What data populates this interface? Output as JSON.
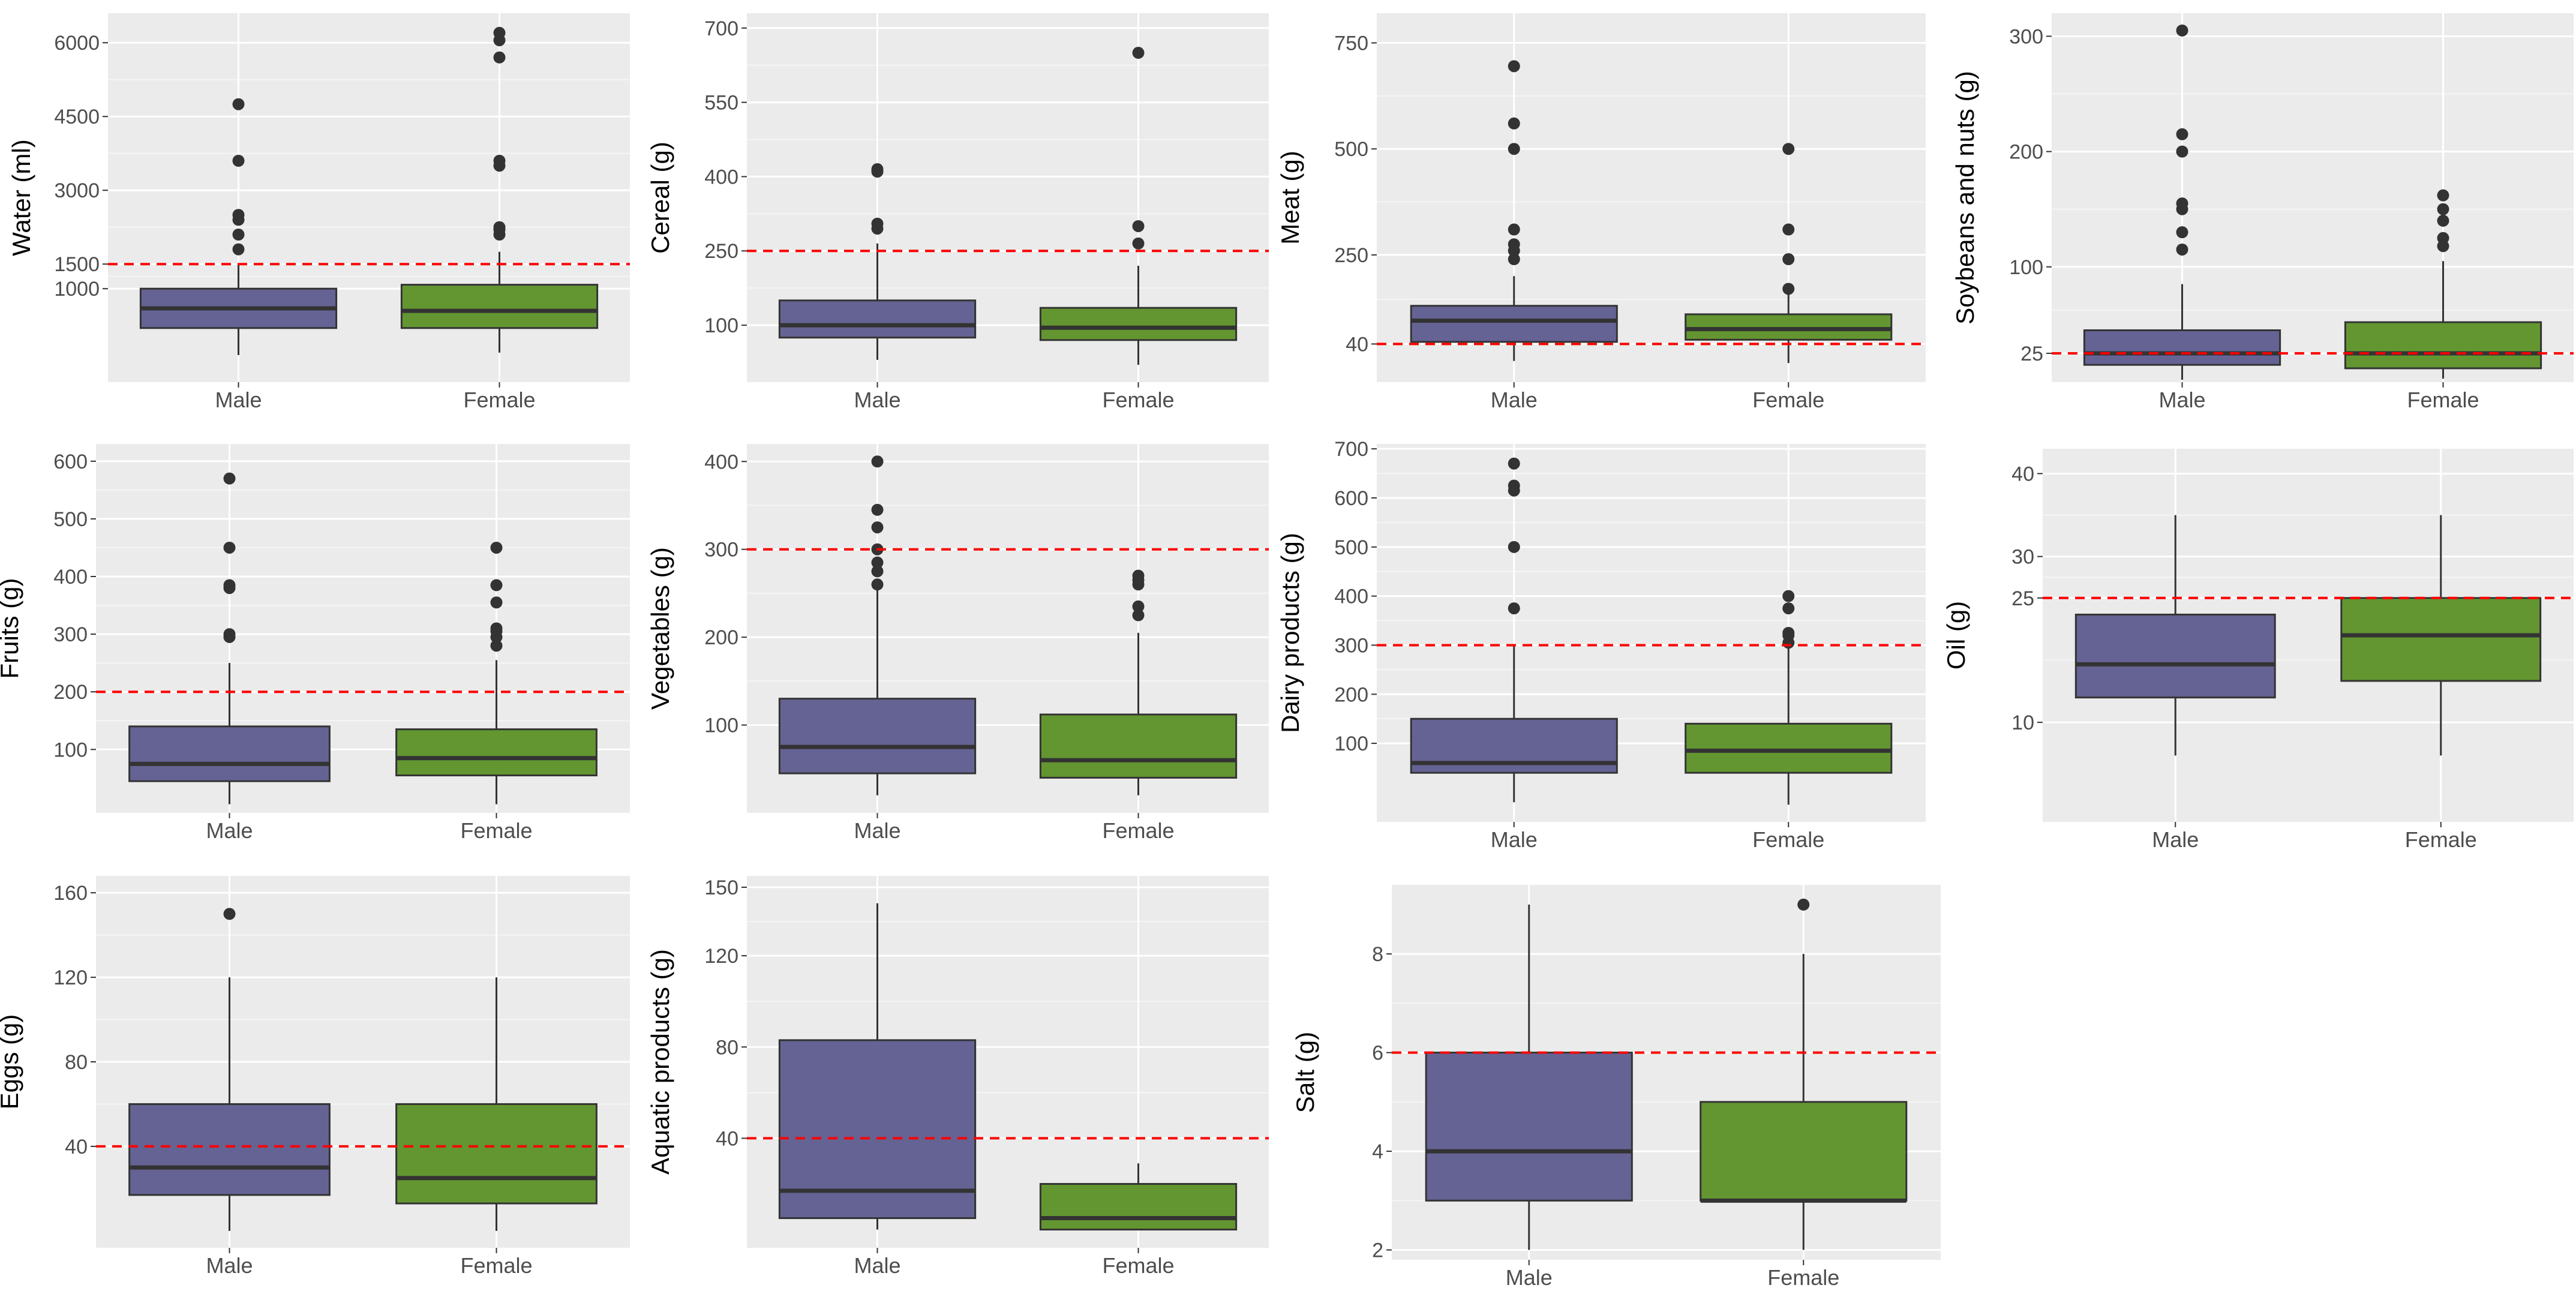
{
  "chart_data": [
    {
      "type": "boxplot",
      "ylabel": "Water (ml)",
      "categories": [
        "Male",
        "Female"
      ],
      "colors": [
        "#656394",
        "#639631"
      ],
      "yticks": [
        1000,
        1500,
        3000,
        4500,
        6000
      ],
      "ylim": [
        -900,
        6600
      ],
      "reference_line": 1500,
      "series": [
        {
          "name": "Male",
          "whisker_low": -350,
          "q1": 200,
          "median": 600,
          "q3": 1000,
          "whisker_high": 1500,
          "outliers": [
            1800,
            2100,
            2400,
            2500,
            3600,
            4750
          ]
        },
        {
          "name": "Female",
          "whisker_low": -300,
          "q1": 200,
          "median": 550,
          "q3": 1080,
          "whisker_high": 1750,
          "outliers": [
            2100,
            2200,
            2250,
            3500,
            3600,
            5700,
            6050,
            6200
          ]
        }
      ]
    },
    {
      "type": "boxplot",
      "ylabel": "Cereal (g)",
      "categories": [
        "Male",
        "Female"
      ],
      "colors": [
        "#656394",
        "#639631"
      ],
      "yticks": [
        100,
        250,
        400,
        550,
        700
      ],
      "ylim": [
        -15,
        730
      ],
      "reference_line": 250,
      "series": [
        {
          "name": "Male",
          "whisker_low": 30,
          "q1": 75,
          "median": 100,
          "q3": 150,
          "whisker_high": 265,
          "outliers": [
            295,
            305,
            410,
            415
          ]
        },
        {
          "name": "Female",
          "whisker_low": 20,
          "q1": 70,
          "median": 95,
          "q3": 135,
          "whisker_high": 220,
          "outliers": [
            265,
            300,
            650
          ]
        }
      ]
    },
    {
      "type": "boxplot",
      "ylabel": "Meat (g)",
      "categories": [
        "Male",
        "Female"
      ],
      "colors": [
        "#656394",
        "#639631"
      ],
      "yticks": [
        40,
        250,
        500,
        750
      ],
      "ylim": [
        -50,
        820
      ],
      "reference_line": 40,
      "series": [
        {
          "name": "Male",
          "whisker_low": 0,
          "q1": 45,
          "median": 95,
          "q3": 130,
          "whisker_high": 200,
          "outliers": [
            240,
            260,
            275,
            310,
            500,
            560,
            695
          ]
        },
        {
          "name": "Female",
          "whisker_low": -5,
          "q1": 50,
          "median": 75,
          "q3": 110,
          "whisker_high": 170,
          "outliers": [
            170,
            240,
            310,
            500
          ]
        }
      ]
    },
    {
      "type": "boxplot",
      "ylabel": "Soybeans and nuts (g)",
      "categories": [
        "Male",
        "Female"
      ],
      "colors": [
        "#656394",
        "#639631"
      ],
      "yticks": [
        25,
        100,
        200,
        300
      ],
      "ylim": [
        0,
        320
      ],
      "reference_line": 25,
      "series": [
        {
          "name": "Male",
          "whisker_low": 2,
          "q1": 15,
          "median": 25,
          "q3": 45,
          "whisker_high": 85,
          "outliers": [
            115,
            130,
            150,
            155,
            200,
            215,
            305
          ]
        },
        {
          "name": "Female",
          "whisker_low": 3,
          "q1": 12,
          "median": 25,
          "q3": 52,
          "whisker_high": 105,
          "outliers": [
            118,
            125,
            140,
            150,
            162
          ]
        }
      ]
    },
    {
      "type": "boxplot",
      "ylabel": "Fruits (g)",
      "categories": [
        "Male",
        "Female"
      ],
      "colors": [
        "#656394",
        "#639631"
      ],
      "yticks": [
        100,
        200,
        300,
        400,
        500,
        600
      ],
      "ylim": [
        -10,
        630
      ],
      "reference_line": 200,
      "series": [
        {
          "name": "Male",
          "whisker_low": 5,
          "q1": 45,
          "median": 75,
          "q3": 140,
          "whisker_high": 250,
          "outliers": [
            295,
            300,
            380,
            385,
            450,
            570
          ]
        },
        {
          "name": "Female",
          "whisker_low": 5,
          "q1": 55,
          "median": 85,
          "q3": 135,
          "whisker_high": 255,
          "outliers": [
            280,
            295,
            305,
            310,
            355,
            385,
            450
          ]
        }
      ]
    },
    {
      "type": "boxplot",
      "ylabel": "Vegetables (g)",
      "categories": [
        "Male",
        "Female"
      ],
      "colors": [
        "#656394",
        "#639631"
      ],
      "yticks": [
        100,
        200,
        300,
        400
      ],
      "ylim": [
        0,
        420
      ],
      "reference_line": 300,
      "series": [
        {
          "name": "Male",
          "whisker_low": 20,
          "q1": 45,
          "median": 75,
          "q3": 130,
          "whisker_high": 255,
          "outliers": [
            260,
            275,
            285,
            300,
            325,
            345,
            400
          ]
        },
        {
          "name": "Female",
          "whisker_low": 20,
          "q1": 40,
          "median": 60,
          "q3": 112,
          "whisker_high": 205,
          "outliers": [
            225,
            235,
            260,
            265,
            270
          ]
        }
      ]
    },
    {
      "type": "boxplot",
      "ylabel": "Dairy products (g)",
      "categories": [
        "Male",
        "Female"
      ],
      "colors": [
        "#656394",
        "#639631"
      ],
      "yticks": [
        100,
        200,
        300,
        400,
        500,
        600,
        700
      ],
      "ylim": [
        -60,
        710
      ],
      "reference_line": 300,
      "series": [
        {
          "name": "Male",
          "whisker_low": -20,
          "q1": 40,
          "median": 60,
          "q3": 150,
          "whisker_high": 300,
          "outliers": [
            375,
            500,
            615,
            625,
            670
          ]
        },
        {
          "name": "Female",
          "whisker_low": -25,
          "q1": 40,
          "median": 85,
          "q3": 140,
          "whisker_high": 320,
          "outliers": [
            305,
            320,
            325,
            375,
            400
          ]
        }
      ]
    },
    {
      "type": "boxplot",
      "ylabel": "Oil (g)",
      "categories": [
        "Male",
        "Female"
      ],
      "colors": [
        "#656394",
        "#639631"
      ],
      "yticks": [
        10,
        25,
        30,
        40
      ],
      "ylim": [
        -2,
        43
      ],
      "reference_line": 25,
      "series": [
        {
          "name": "Male",
          "whisker_low": 6,
          "q1": 13,
          "median": 17,
          "q3": 23,
          "whisker_high": 35,
          "outliers": []
        },
        {
          "name": "Female",
          "whisker_low": 6,
          "q1": 15,
          "median": 20.5,
          "q3": 25,
          "whisker_high": 35,
          "outliers": []
        }
      ]
    },
    {
      "type": "boxplot",
      "ylabel": "Eggs (g)",
      "categories": [
        "Male",
        "Female"
      ],
      "colors": [
        "#656394",
        "#639631"
      ],
      "yticks": [
        40,
        80,
        120,
        160
      ],
      "ylim": [
        -8,
        168
      ],
      "reference_line": 40,
      "series": [
        {
          "name": "Male",
          "whisker_low": 0,
          "q1": 17,
          "median": 30,
          "q3": 60,
          "whisker_high": 120,
          "outliers": [
            150
          ]
        },
        {
          "name": "Female",
          "whisker_low": 0,
          "q1": 13,
          "median": 25,
          "q3": 60,
          "whisker_high": 120,
          "outliers": []
        }
      ]
    },
    {
      "type": "boxplot",
      "ylabel": "Aquatic products (g)",
      "categories": [
        "Male",
        "Female"
      ],
      "colors": [
        "#656394",
        "#639631"
      ],
      "yticks": [
        40,
        80,
        120,
        150
      ],
      "ylim": [
        -8,
        155
      ],
      "reference_line": 40,
      "series": [
        {
          "name": "Male",
          "whisker_low": 0,
          "q1": 5,
          "median": 17,
          "q3": 83,
          "whisker_high": 143,
          "outliers": []
        },
        {
          "name": "Female",
          "whisker_low": 0,
          "q1": 0,
          "median": 5,
          "q3": 20,
          "whisker_high": 29,
          "outliers": []
        }
      ]
    },
    {
      "type": "boxplot",
      "ylabel": "Salt (g)",
      "categories": [
        "Male",
        "Female"
      ],
      "colors": [
        "#656394",
        "#639631"
      ],
      "yticks": [
        2,
        4,
        6,
        8
      ],
      "ylim": [
        1.8,
        9.4
      ],
      "reference_line": 6,
      "series": [
        {
          "name": "Male",
          "whisker_low": 2,
          "q1": 3,
          "median": 4,
          "q3": 6,
          "whisker_high": 9,
          "outliers": []
        },
        {
          "name": "Female",
          "whisker_low": 2,
          "q1": 3,
          "median": 3,
          "q3": 5,
          "whisker_high": 8,
          "outliers": [
            9
          ]
        }
      ]
    }
  ]
}
